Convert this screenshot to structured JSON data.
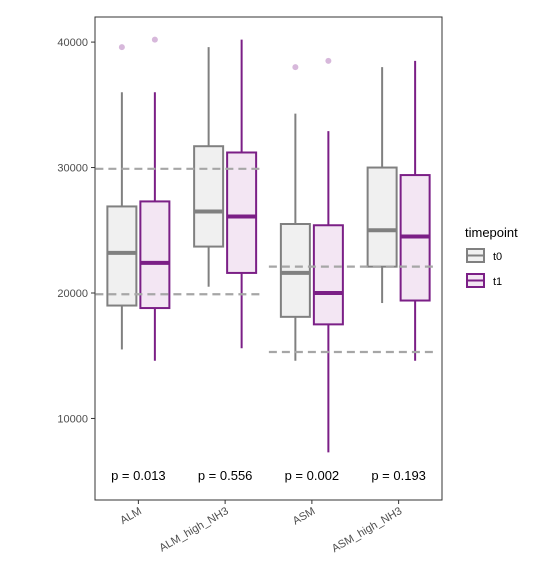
{
  "chart_data": {
    "type": "box",
    "title": "",
    "xlabel": "",
    "ylabel": "",
    "ylim": [
      3500,
      42000
    ],
    "y_ticks": [
      10000,
      20000,
      30000,
      40000
    ],
    "y_tick_labels": [
      "10000",
      "20000",
      "30000",
      "40000"
    ],
    "categories": [
      "ALM",
      "ALM_high_NH3",
      "ASM",
      "ASM_high_NH3"
    ],
    "legend": {
      "title": "timepoint",
      "placement": "right",
      "entries": [
        "t0",
        "t1"
      ]
    },
    "series": [
      {
        "name": "t0",
        "color": "#808080",
        "fill": "#f0f0f0",
        "boxes": [
          {
            "whisker_low": 15500,
            "q1": 19000,
            "median": 23200,
            "q3": 26900,
            "whisker_high": 36000,
            "outliers": [
              39600
            ]
          },
          {
            "whisker_low": 20500,
            "q1": 23700,
            "median": 26500,
            "q3": 31700,
            "whisker_high": 39600,
            "outliers": []
          },
          {
            "whisker_low": 14600,
            "q1": 18100,
            "median": 21600,
            "q3": 25500,
            "whisker_high": 34300,
            "outliers": [
              38000
            ]
          },
          {
            "whisker_low": 19200,
            "q1": 22100,
            "median": 25000,
            "q3": 30000,
            "whisker_high": 38000,
            "outliers": []
          }
        ]
      },
      {
        "name": "t1",
        "color": "#7b1f86",
        "fill": "#f3e6f3",
        "boxes": [
          {
            "whisker_low": 14600,
            "q1": 18800,
            "median": 22400,
            "q3": 27300,
            "whisker_high": 36000,
            "outliers": [
              40200
            ]
          },
          {
            "whisker_low": 15600,
            "q1": 21600,
            "median": 26100,
            "q3": 31200,
            "whisker_high": 40200,
            "outliers": []
          },
          {
            "whisker_low": 7300,
            "q1": 17500,
            "median": 20000,
            "q3": 25400,
            "whisker_high": 32900,
            "outliers": [
              38500
            ]
          },
          {
            "whisker_low": 14600,
            "q1": 19400,
            "median": 24500,
            "q3": 29400,
            "whisker_high": 38500,
            "outliers": []
          }
        ]
      }
    ],
    "reference_lines": [
      {
        "y": 29900,
        "from": "ALM",
        "to": "ALM_high_NH3"
      },
      {
        "y": 19900,
        "from": "ALM",
        "to": "ALM_high_NH3"
      },
      {
        "y": 22100,
        "from": "ASM",
        "to": "ASM_high_NH3"
      },
      {
        "y": 15300,
        "from": "ASM",
        "to": "ASM_high_NH3"
      }
    ],
    "reference_line_color": "#a6a6a6",
    "annotations": [
      {
        "category": "ALM",
        "text": "p = 0.013",
        "y": 5100
      },
      {
        "category": "ALM_high_NH3",
        "text": "p = 0.556",
        "y": 5100
      },
      {
        "category": "ASM",
        "text": "p = 0.002",
        "y": 5100
      },
      {
        "category": "ASM_high_NH3",
        "text": "p = 0.193",
        "y": 5100
      }
    ],
    "grid": false,
    "outlier_color": "#d7b8db"
  }
}
